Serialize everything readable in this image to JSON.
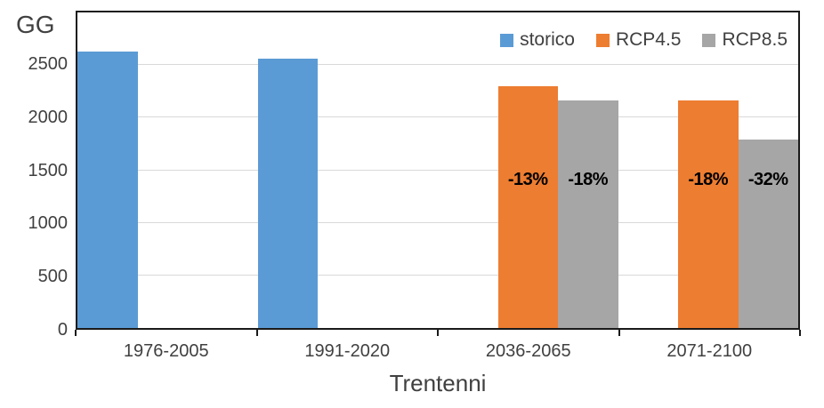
{
  "chart_data": {
    "type": "bar",
    "title": "",
    "ylabel": "GG",
    "xlabel": "Trentenni",
    "ylim": [
      0,
      3000
    ],
    "yticks": [
      0,
      500,
      1000,
      1500,
      2000,
      2500
    ],
    "grid": true,
    "legend_position": "top-right",
    "categories": [
      "1976-2005",
      "1991-2020",
      "2036-2065",
      "2071-2100"
    ],
    "series": [
      {
        "name": "storico",
        "color": "#5B9BD5",
        "values": [
          2630,
          2560,
          null,
          null
        ],
        "labels": [
          null,
          null,
          null,
          null
        ]
      },
      {
        "name": "RCP4.5",
        "color": "#ED7D31",
        "values": [
          null,
          null,
          2300,
          2160
        ],
        "labels": [
          null,
          null,
          "-13%",
          "-18%"
        ]
      },
      {
        "name": "RCP8.5",
        "color": "#A6A6A6",
        "values": [
          null,
          null,
          2160,
          1790
        ],
        "labels": [
          null,
          null,
          "-18%",
          "-32%"
        ]
      }
    ]
  },
  "colors": {
    "axis_text": "#404040",
    "data_label_text": "#000000",
    "gridline": "#D9D9D9",
    "axis_line": "#1A1A1A",
    "background": "#FFFFFF"
  }
}
